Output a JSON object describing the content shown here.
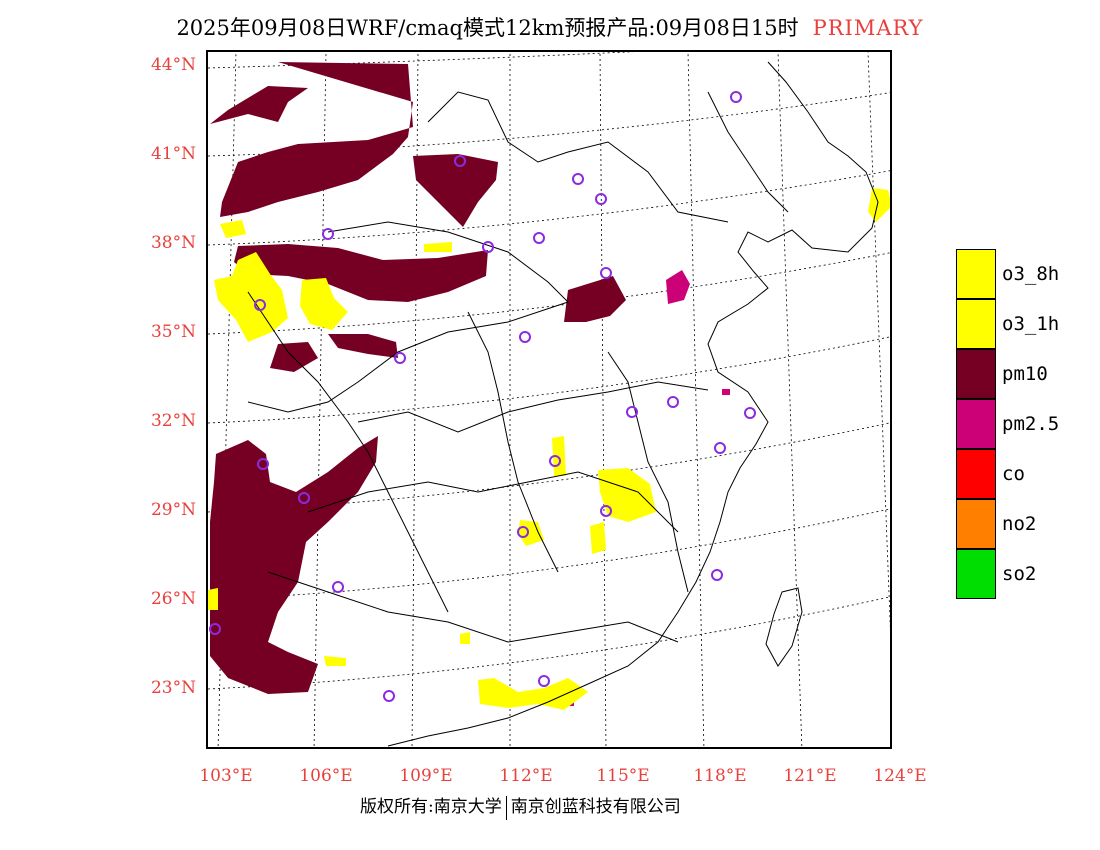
{
  "title": {
    "main": "2025年09月08日WRF/cmaq模式12km预报产品:09月08日15时",
    "tag": "PRIMARY"
  },
  "axes": {
    "latitudes": [
      "44°N",
      "41°N",
      "38°N",
      "35°N",
      "32°N",
      "29°N",
      "26°N",
      "23°N"
    ],
    "longitudes": [
      "103°E",
      "106°E",
      "109°E",
      "112°E",
      "115°E",
      "118°E",
      "121°E",
      "124°E"
    ]
  },
  "legend": [
    {
      "label": "o3_8h",
      "color": "#ffff00"
    },
    {
      "label": "o3_1h",
      "color": "#ffff00"
    },
    {
      "label": "pm10",
      "color": "#760024"
    },
    {
      "label": "pm2.5",
      "color": "#cc0077"
    },
    {
      "label": "co",
      "color": "#ff0000"
    },
    {
      "label": "no2",
      "color": "#ff7f00"
    },
    {
      "label": "so2",
      "color": "#00dd00"
    }
  ],
  "footer": {
    "copyright": "版权所有:南京大学",
    "company": "南京创蓝科技有限公司"
  },
  "colors": {
    "accent": "#e8403c",
    "pm10": "#760024",
    "pm25": "#cc0077",
    "o3": "#ffff00",
    "station": "#8a2be2"
  }
}
